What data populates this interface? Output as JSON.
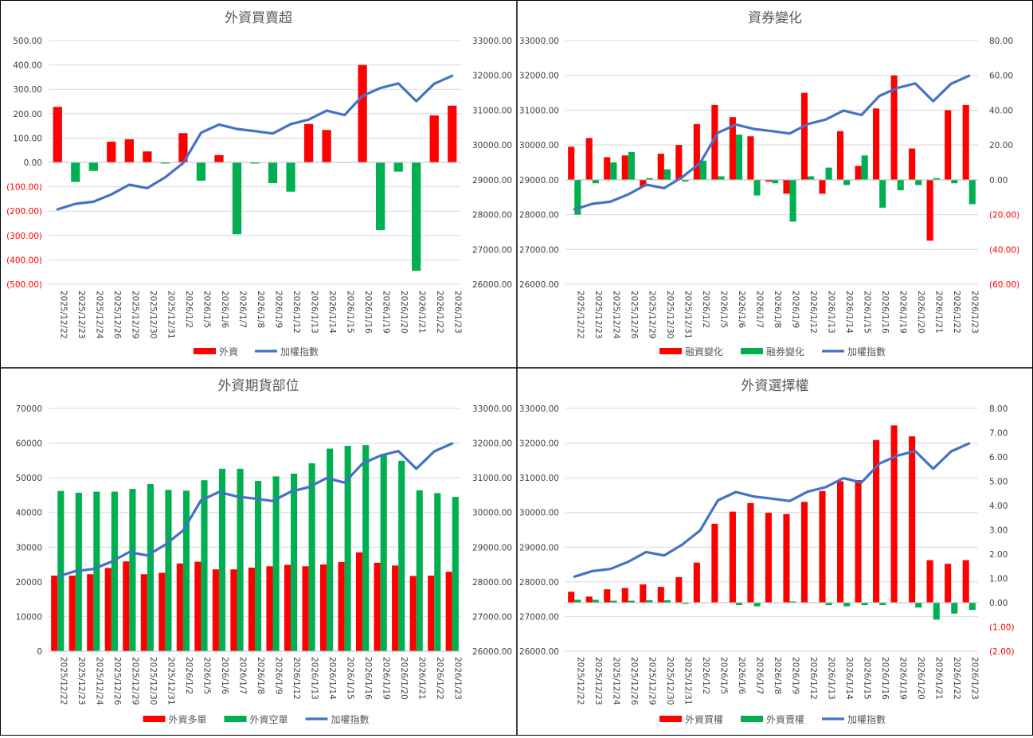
{
  "colors": {
    "red": "#FF0000",
    "green": "#00B050",
    "blue": "#4472C4",
    "grid": "#D9D9D9",
    "axis_text": "#404040",
    "negative_text": "#FF0000"
  },
  "dates": [
    "2025/12/22",
    "2025/12/23",
    "2025/12/24",
    "2025/12/26",
    "2025/12/29",
    "2025/12/30",
    "2025/12/31",
    "2026/1/2",
    "2026/1/5",
    "2026/1/6",
    "2026/1/7",
    "2026/1/8",
    "2026/1/9",
    "2026/1/12",
    "2026/1/13",
    "2026/1/14",
    "2026/1/15",
    "2026/1/16",
    "2026/1/19",
    "2026/1/20",
    "2026/1/21",
    "2026/1/22",
    "2026/1/23"
  ],
  "chart_data": [
    {
      "id": "c1",
      "type": "bar+line",
      "title": "外資買賣超",
      "ylim_left": [
        -500,
        500
      ],
      "yticks_left_step": 100,
      "left_tick_labels": [
        "500.00",
        "400.00",
        "300.00",
        "200.00",
        "100.00",
        "0.00",
        "(100.00)",
        "(200.00)",
        "(300.00)",
        "(400.00)",
        "(500.00)"
      ],
      "ylim_right": [
        26000,
        33000
      ],
      "yticks_right_step": 1000,
      "right_tick_labels": [
        "33000.00",
        "32000.00",
        "31000.00",
        "30000.00",
        "29000.00",
        "28000.00",
        "27000.00",
        "26000.00"
      ],
      "bar_mode": "signed",
      "series": [
        {
          "name": "外資",
          "type": "bar",
          "axis": "left",
          "color": "#FF0000",
          "negative_color": "#00B050",
          "values": [
            228,
            -80,
            -35,
            85,
            95,
            45,
            -5,
            120,
            -75,
            30,
            -295,
            -5,
            -85,
            -120,
            158,
            133,
            0,
            400,
            -278,
            -38,
            -445,
            193,
            233
          ]
        },
        {
          "name": "加權指數",
          "type": "line",
          "axis": "right",
          "color": "#4472C4",
          "values": [
            28150,
            28310,
            28370,
            28580,
            28860,
            28760,
            29070,
            29480,
            30350,
            30590,
            30460,
            30400,
            30330,
            30600,
            30730,
            30990,
            30860,
            31410,
            31640,
            31770,
            31260,
            31760,
            31990
          ]
        }
      ]
    },
    {
      "id": "c2",
      "type": "bar+line",
      "title": "資券變化",
      "ylim_left": [
        26000,
        33000
      ],
      "yticks_left_step": 1000,
      "left_tick_labels": [
        "33000.00",
        "32000.00",
        "31000.00",
        "30000.00",
        "29000.00",
        "28000.00",
        "27000.00",
        "26000.00"
      ],
      "ylim_right": [
        -60,
        80
      ],
      "yticks_right_step": 20,
      "right_tick_labels": [
        "80.00",
        "60.00",
        "40.00",
        "20.00",
        "0.00",
        "(20.00)",
        "(40.00)",
        "(60.00)"
      ],
      "bar_mode": "grouped",
      "series": [
        {
          "name": "融資變化",
          "type": "bar",
          "axis": "right",
          "color": "#FF0000",
          "values": [
            19,
            24,
            13,
            14,
            -4,
            15,
            20,
            32,
            43,
            36,
            25,
            -1,
            -8,
            50,
            -8,
            28,
            8,
            41,
            60,
            18,
            -35,
            40,
            43
          ]
        },
        {
          "name": "融券變化",
          "type": "bar",
          "axis": "right",
          "color": "#00B050",
          "values": [
            -20,
            -2,
            10,
            16,
            1,
            6,
            -1,
            11,
            2,
            26,
            -9,
            -2,
            -24,
            2,
            7,
            -3,
            14,
            -16,
            -6,
            -3,
            1,
            -2,
            -14
          ]
        },
        {
          "name": "加權指數",
          "type": "line",
          "axis": "left",
          "color": "#4472C4",
          "values": [
            28150,
            28310,
            28370,
            28580,
            28860,
            28760,
            29070,
            29480,
            30350,
            30590,
            30460,
            30400,
            30330,
            30600,
            30730,
            30990,
            30860,
            31410,
            31640,
            31770,
            31260,
            31760,
            31990
          ]
        }
      ]
    },
    {
      "id": "c3",
      "type": "bar+line",
      "title": "外資期貨部位",
      "ylim_left": [
        0,
        70000
      ],
      "yticks_left_step": 10000,
      "left_tick_labels": [
        "70000",
        "60000",
        "50000",
        "40000",
        "30000",
        "20000",
        "10000",
        "0"
      ],
      "ylim_right": [
        26000,
        33000
      ],
      "yticks_right_step": 1000,
      "right_tick_labels": [
        "33000.00",
        "32000.00",
        "31000.00",
        "30000.00",
        "29000.00",
        "28000.00",
        "27000.00",
        "26000.00"
      ],
      "bar_mode": "grouped",
      "series": [
        {
          "name": "外資多單",
          "type": "bar",
          "axis": "left",
          "color": "#FF0000",
          "values": [
            21800,
            21800,
            22200,
            24000,
            25900,
            22200,
            22600,
            25300,
            25800,
            23600,
            23600,
            24100,
            24500,
            24900,
            24500,
            25000,
            25700,
            28500,
            25500,
            24700,
            21700,
            21800,
            22900
          ]
        },
        {
          "name": "外資空單",
          "type": "bar",
          "axis": "left",
          "color": "#00B050",
          "values": [
            46200,
            45700,
            46000,
            46000,
            46800,
            48200,
            46500,
            46300,
            49300,
            52600,
            52600,
            49100,
            50400,
            51200,
            54200,
            58400,
            59200,
            59400,
            56700,
            54900,
            46400,
            45600,
            44500
          ]
        },
        {
          "name": "加權指數",
          "type": "line",
          "axis": "right",
          "color": "#4472C4",
          "values": [
            28150,
            28310,
            28370,
            28580,
            28860,
            28760,
            29070,
            29480,
            30350,
            30590,
            30460,
            30400,
            30330,
            30600,
            30730,
            30990,
            30860,
            31410,
            31640,
            31770,
            31260,
            31760,
            31990
          ]
        }
      ]
    },
    {
      "id": "c4",
      "type": "bar+line",
      "title": "外資選擇權",
      "ylim_left": [
        26000,
        33000
      ],
      "yticks_left_step": 1000,
      "left_tick_labels": [
        "33000.00",
        "32000.00",
        "31000.00",
        "30000.00",
        "29000.00",
        "28000.00",
        "27000.00",
        "26000.00"
      ],
      "ylim_right": [
        -2,
        8
      ],
      "yticks_right_step": 1,
      "right_tick_labels": [
        "8.00",
        "7.00",
        "6.00",
        "5.00",
        "4.00",
        "3.00",
        "2.00",
        "1.00",
        "0.00",
        "(1.00)",
        "(2.00)"
      ],
      "bar_mode": "grouped",
      "series": [
        {
          "name": "外資買權",
          "type": "bar",
          "axis": "right",
          "color": "#FF0000",
          "values": [
            0.45,
            0.25,
            0.55,
            0.6,
            0.75,
            0.65,
            1.05,
            1.65,
            3.25,
            3.75,
            4.1,
            3.7,
            3.65,
            4.15,
            4.6,
            5.0,
            5.05,
            6.7,
            7.3,
            6.85,
            1.75,
            1.6,
            1.75
          ]
        },
        {
          "name": "外資賣權",
          "type": "bar",
          "axis": "right",
          "color": "#00B050",
          "values": [
            0.12,
            0.12,
            0.08,
            0.08,
            0.1,
            0.1,
            -0.05,
            -0.02,
            0.0,
            -0.1,
            -0.15,
            0.0,
            0.05,
            0.0,
            -0.1,
            -0.15,
            -0.1,
            -0.1,
            0.0,
            -0.2,
            -0.7,
            -0.45,
            -0.3
          ]
        },
        {
          "name": "加權指數",
          "type": "line",
          "axis": "left",
          "color": "#4472C4",
          "values": [
            28150,
            28310,
            28370,
            28580,
            28860,
            28760,
            29070,
            29480,
            30350,
            30590,
            30460,
            30400,
            30330,
            30600,
            30730,
            30990,
            30860,
            31410,
            31640,
            31770,
            31260,
            31760,
            31990
          ]
        }
      ]
    }
  ]
}
